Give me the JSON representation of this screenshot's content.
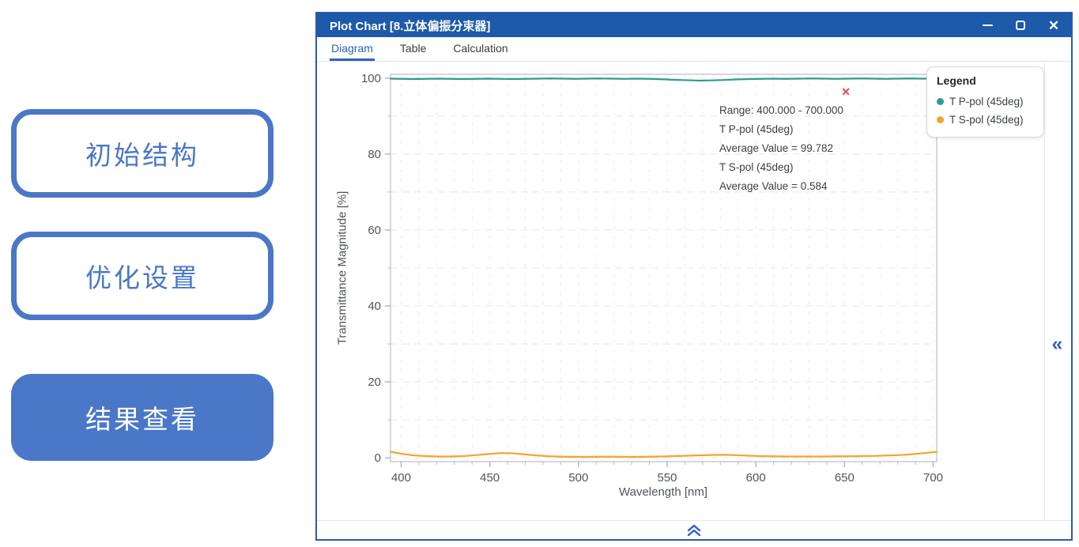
{
  "nav_buttons": [
    {
      "label": "初始结构",
      "style": "outline"
    },
    {
      "label": "优化设置",
      "style": "outline"
    },
    {
      "label": "结果查看",
      "style": "filled"
    }
  ],
  "window": {
    "title": "Plot Chart [8.立体偏振分束器]",
    "controls": {
      "minimize": "minimize",
      "maximize": "maximize",
      "close": "✕"
    },
    "tabs": [
      {
        "label": "Diagram",
        "active": true
      },
      {
        "label": "Table",
        "active": false
      },
      {
        "label": "Calculation",
        "active": false
      }
    ]
  },
  "annotation": {
    "close_icon": "✕",
    "lines": {
      "range": "Range: 400.000 - 700.000",
      "series1_name": "T P-pol (45deg)",
      "series1_avg": "Average Value = 99.782",
      "series2_name": "T S-pol (45deg)",
      "series2_avg": "Average Value = 0.584"
    }
  },
  "legend": {
    "title": "Legend",
    "items": [
      {
        "label": "T P-pol (45deg)",
        "color": "#2f9c8c"
      },
      {
        "label": "T S-pol (45deg)",
        "color": "#f5a42c"
      }
    ]
  },
  "side_panel": {
    "collapse_icon": "«"
  },
  "colors": {
    "titlebar": "#1d5aa9",
    "window_border": "#2a5caa",
    "button_blue": "#4a77c8",
    "tab_active": "#2766bb",
    "series_p": "#2f9c8c",
    "series_s": "#f5a42c",
    "annotation_close": "#e14b4b",
    "chevron_blue": "#3063cf"
  },
  "chart_data": {
    "type": "line",
    "title": "",
    "xlabel": "Wavelength [nm]",
    "ylabel": "Transmittance Magnitude [%]",
    "xlim": [
      394,
      702
    ],
    "ylim": [
      -1,
      101
    ],
    "x_ticks": [
      400,
      450,
      500,
      550,
      600,
      650,
      700
    ],
    "y_ticks": [
      0,
      20,
      40,
      60,
      80,
      100
    ],
    "x_minor_step": 10,
    "y_minor_step": 10,
    "grid": "dashed minor grid on",
    "legend_position": "top-right",
    "range_label": "Range: 400.000 - 700.000",
    "x": [
      394,
      400,
      407,
      414,
      421,
      428,
      435,
      442,
      449,
      456,
      463,
      470,
      477,
      484,
      491,
      498,
      505,
      512,
      519,
      526,
      533,
      540,
      547,
      554,
      561,
      568,
      575,
      582,
      589,
      596,
      603,
      610,
      617,
      624,
      631,
      638,
      645,
      652,
      659,
      666,
      673,
      680,
      687,
      694,
      702
    ],
    "series": [
      {
        "name": "T P-pol (45deg)",
        "color": "#2f9c8c",
        "average": 99.782,
        "values": [
          99.85,
          99.8,
          99.75,
          99.8,
          99.85,
          99.8,
          99.75,
          99.8,
          99.85,
          99.8,
          99.75,
          99.8,
          99.85,
          99.9,
          99.85,
          99.8,
          99.85,
          99.9,
          99.85,
          99.8,
          99.85,
          99.8,
          99.7,
          99.55,
          99.45,
          99.35,
          99.4,
          99.5,
          99.65,
          99.75,
          99.8,
          99.85,
          99.8,
          99.85,
          99.9,
          99.85,
          99.8,
          99.85,
          99.9,
          99.85,
          99.8,
          99.85,
          99.9,
          99.85,
          99.9
        ]
      },
      {
        "name": "T S-pol (45deg)",
        "color": "#f5a42c",
        "average": 0.584,
        "values": [
          1.6,
          1.1,
          0.65,
          0.45,
          0.35,
          0.35,
          0.45,
          0.7,
          1.0,
          1.25,
          1.2,
          0.9,
          0.6,
          0.4,
          0.3,
          0.25,
          0.25,
          0.3,
          0.3,
          0.25,
          0.25,
          0.3,
          0.35,
          0.45,
          0.55,
          0.65,
          0.75,
          0.8,
          0.7,
          0.55,
          0.45,
          0.4,
          0.35,
          0.35,
          0.35,
          0.35,
          0.4,
          0.4,
          0.45,
          0.5,
          0.6,
          0.7,
          0.9,
          1.2,
          1.6
        ]
      }
    ]
  }
}
